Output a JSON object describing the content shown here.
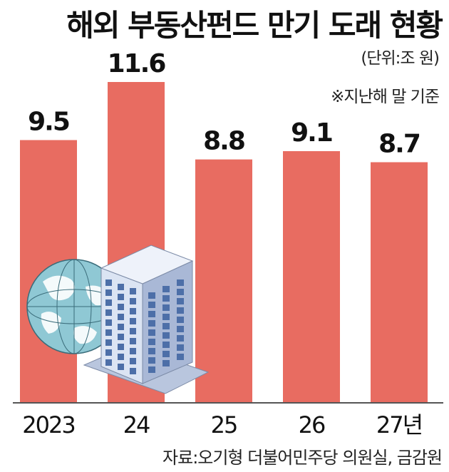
{
  "header": {
    "title": "해외 부동산펀드 만기 도래 현황",
    "unit": "(단위:조 원)",
    "note": "※지난해 말 기준"
  },
  "footer": {
    "source": "자료:오기형 더불어민주당 의원실, 금감원"
  },
  "colors": {
    "bar": "#e86c61",
    "axis": "#555555",
    "globe": "#8fc8d4",
    "building": "#c5d3ea"
  },
  "illustration": {
    "globe_icon": "globe-icon",
    "building_icon": "office-building-icon"
  },
  "chart_data": {
    "type": "bar",
    "title": "해외 부동산펀드 만기 도래 현황",
    "unit": "(단위:조 원)",
    "note": "※지난해 말 기준",
    "categories": [
      "2023",
      "24",
      "25",
      "26",
      "27년"
    ],
    "values": [
      9.5,
      11.6,
      8.8,
      9.1,
      8.7
    ],
    "value_labels": [
      "9.5",
      "11.6",
      "8.8",
      "9.1",
      "8.7"
    ],
    "xlabel": "",
    "ylabel": "",
    "ylim": [
      0,
      11.6
    ],
    "grid": false,
    "legend": "none"
  }
}
